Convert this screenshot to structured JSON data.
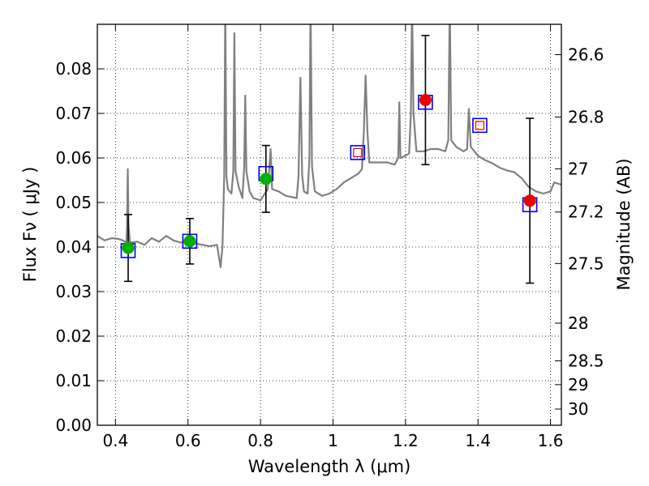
{
  "chart_data": {
    "type": "scatter",
    "xlabel": "Wavelength  λ (μm)",
    "ylabel": "Flux  Fν  ( μJy )",
    "ylabel_right": "Magnitude (AB)",
    "xlim": [
      0.35,
      1.63
    ],
    "ylim": [
      0.0,
      0.09
    ],
    "grid": true,
    "x_ticks": [
      0.4,
      0.6,
      0.8,
      1.0,
      1.2,
      1.4,
      1.6
    ],
    "x_tick_labels": [
      "0.4",
      "0.6",
      "0.8",
      "1",
      "1.2",
      "1.4",
      "1.6"
    ],
    "y_ticks": [
      0.0,
      0.01,
      0.02,
      0.03,
      0.04,
      0.05,
      0.06,
      0.07,
      0.08
    ],
    "y_tick_labels": [
      "0.00",
      "0.01",
      "0.02",
      "0.03",
      "0.04",
      "0.05",
      "0.06",
      "0.07",
      "0.08"
    ],
    "mag_ticks": [
      26.6,
      26.8,
      27,
      27.2,
      27.5,
      28,
      28.5,
      29,
      30
    ],
    "mag_tick_labels": [
      "26.6",
      "26.8",
      "27",
      "27.2",
      "27.5",
      "28",
      "28.5",
      "29",
      "30"
    ],
    "colors": {
      "spectrum": "#808080",
      "green_points": "#00b000",
      "red_points": "#ee0000",
      "model_box": "#0000ee",
      "inner_box": "#ee0000",
      "errorbar": "#000000"
    },
    "model_boxes": [
      {
        "x": 0.435,
        "y": 0.0392
      },
      {
        "x": 0.605,
        "y": 0.0413
      },
      {
        "x": 0.815,
        "y": 0.0565
      },
      {
        "x": 1.068,
        "y": 0.0612
      },
      {
        "x": 1.255,
        "y": 0.0725
      },
      {
        "x": 1.405,
        "y": 0.0673
      },
      {
        "x": 1.543,
        "y": 0.0495
      }
    ],
    "upper_limits": [
      {
        "x": 1.068,
        "y": 0.0612
      },
      {
        "x": 1.405,
        "y": 0.0673
      }
    ],
    "green_points": [
      {
        "x": 0.435,
        "y": 0.0398,
        "err": 0.0075
      },
      {
        "x": 0.605,
        "y": 0.0413,
        "err": 0.0051
      },
      {
        "x": 0.815,
        "y": 0.0553,
        "err": 0.0075
      }
    ],
    "red_points": [
      {
        "x": 1.255,
        "y": 0.073,
        "err": 0.0145
      },
      {
        "x": 1.543,
        "y": 0.0504,
        "err": 0.0185
      }
    ],
    "spectrum": [
      [
        0.35,
        0.0425
      ],
      [
        0.37,
        0.0415
      ],
      [
        0.39,
        0.042
      ],
      [
        0.41,
        0.0418
      ],
      [
        0.42,
        0.0415
      ],
      [
        0.43,
        0.041
      ],
      [
        0.432,
        0.045
      ],
      [
        0.434,
        0.0575
      ],
      [
        0.436,
        0.045
      ],
      [
        0.44,
        0.041
      ],
      [
        0.46,
        0.0412
      ],
      [
        0.48,
        0.0405
      ],
      [
        0.5,
        0.042
      ],
      [
        0.52,
        0.0412
      ],
      [
        0.54,
        0.0425
      ],
      [
        0.56,
        0.0415
      ],
      [
        0.58,
        0.041
      ],
      [
        0.6,
        0.0412
      ],
      [
        0.62,
        0.0408
      ],
      [
        0.64,
        0.0405
      ],
      [
        0.66,
        0.0402
      ],
      [
        0.68,
        0.0405
      ],
      [
        0.685,
        0.038
      ],
      [
        0.69,
        0.0355
      ],
      [
        0.695,
        0.04
      ],
      [
        0.7,
        0.056
      ],
      [
        0.703,
        0.095
      ],
      [
        0.706,
        0.056
      ],
      [
        0.71,
        0.053
      ],
      [
        0.72,
        0.052
      ],
      [
        0.725,
        0.057
      ],
      [
        0.728,
        0.088
      ],
      [
        0.731,
        0.057
      ],
      [
        0.74,
        0.0535
      ],
      [
        0.75,
        0.051
      ],
      [
        0.755,
        0.058
      ],
      [
        0.758,
        0.074
      ],
      [
        0.761,
        0.057
      ],
      [
        0.77,
        0.0525
      ],
      [
        0.78,
        0.051
      ],
      [
        0.8,
        0.0505
      ],
      [
        0.82,
        0.053
      ],
      [
        0.828,
        0.062
      ],
      [
        0.832,
        0.053
      ],
      [
        0.85,
        0.0525
      ],
      [
        0.87,
        0.0515
      ],
      [
        0.9,
        0.051
      ],
      [
        0.905,
        0.056
      ],
      [
        0.91,
        0.078
      ],
      [
        0.915,
        0.056
      ],
      [
        0.92,
        0.0525
      ],
      [
        0.93,
        0.052
      ],
      [
        0.935,
        0.06
      ],
      [
        0.938,
        0.095
      ],
      [
        0.942,
        0.058
      ],
      [
        0.95,
        0.0525
      ],
      [
        0.97,
        0.0515
      ],
      [
        0.99,
        0.052
      ],
      [
        1.01,
        0.053
      ],
      [
        1.03,
        0.0545
      ],
      [
        1.05,
        0.0555
      ],
      [
        1.07,
        0.0565
      ],
      [
        1.08,
        0.0575
      ],
      [
        1.085,
        0.066
      ],
      [
        1.09,
        0.0785
      ],
      [
        1.095,
        0.066
      ],
      [
        1.1,
        0.059
      ],
      [
        1.12,
        0.059
      ],
      [
        1.15,
        0.059
      ],
      [
        1.17,
        0.0585
      ],
      [
        1.18,
        0.06
      ],
      [
        1.183,
        0.0725
      ],
      [
        1.186,
        0.06
      ],
      [
        1.2,
        0.0605
      ],
      [
        1.21,
        0.061
      ],
      [
        1.215,
        0.07
      ],
      [
        1.218,
        0.095
      ],
      [
        1.222,
        0.07
      ],
      [
        1.23,
        0.0615
      ],
      [
        1.25,
        0.0615
      ],
      [
        1.27,
        0.062
      ],
      [
        1.29,
        0.062
      ],
      [
        1.31,
        0.0615
      ],
      [
        1.318,
        0.064
      ],
      [
        1.322,
        0.095
      ],
      [
        1.326,
        0.064
      ],
      [
        1.34,
        0.0625
      ],
      [
        1.36,
        0.0615
      ],
      [
        1.37,
        0.062
      ],
      [
        1.375,
        0.071
      ],
      [
        1.38,
        0.0625
      ],
      [
        1.4,
        0.0605
      ],
      [
        1.42,
        0.0595
      ],
      [
        1.44,
        0.0588
      ],
      [
        1.46,
        0.0578
      ],
      [
        1.48,
        0.0572
      ],
      [
        1.5,
        0.0568
      ],
      [
        1.52,
        0.0555
      ],
      [
        1.54,
        0.0535
      ],
      [
        1.56,
        0.0525
      ],
      [
        1.58,
        0.052
      ],
      [
        1.6,
        0.0525
      ],
      [
        1.61,
        0.0545
      ],
      [
        1.63,
        0.054
      ]
    ]
  }
}
